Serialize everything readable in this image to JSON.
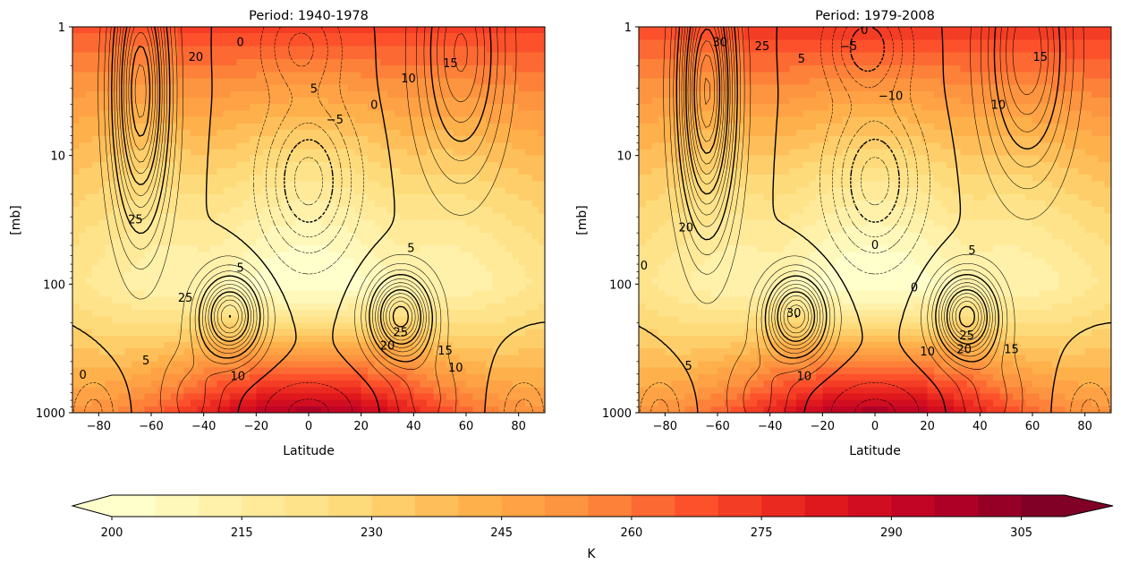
{
  "chart_data": [
    {
      "type": "heatmap",
      "subtype": "filled contour with line contour overlay",
      "title": "Period: 1940-1978",
      "xlabel": "Latitude",
      "ylabel": "[mb]",
      "xlim": [
        -90,
        90
      ],
      "ylim": [
        1000,
        1
      ],
      "yscale": "log",
      "xticks": [
        "−80",
        "−60",
        "−40",
        "−20",
        "0",
        "20",
        "40",
        "60",
        "80"
      ],
      "xtick_values": [
        -80,
        -60,
        -40,
        -20,
        0,
        20,
        40,
        60,
        80
      ],
      "yticks": [
        "1",
        "10",
        "100",
        "1000"
      ],
      "ytick_values": [
        1,
        10,
        100,
        1000
      ],
      "grid": false,
      "contour_labels": [
        {
          "text": "0",
          "lat": -26,
          "p": 1.3
        },
        {
          "text": "20",
          "lat": -43,
          "p": 1.7
        },
        {
          "text": "5",
          "lat": 2,
          "p": 3
        },
        {
          "text": "10",
          "lat": 38,
          "p": 2.5
        },
        {
          "text": "15",
          "lat": 54,
          "p": 1.9
        },
        {
          "text": "0",
          "lat": 25,
          "p": 4
        },
        {
          "text": "−5",
          "lat": 10,
          "p": 5.2
        },
        {
          "text": "25",
          "lat": -66,
          "p": 31
        },
        {
          "text": "5",
          "lat": -26,
          "p": 74
        },
        {
          "text": "5",
          "lat": 39,
          "p": 52
        },
        {
          "text": "25",
          "lat": -47,
          "p": 126
        },
        {
          "text": "25",
          "lat": 35,
          "p": 234
        },
        {
          "text": "20",
          "lat": 30,
          "p": 297
        },
        {
          "text": "15",
          "lat": 52,
          "p": 326
        },
        {
          "text": "10",
          "lat": 56,
          "p": 440
        },
        {
          "text": "5",
          "lat": -62,
          "p": 388
        },
        {
          "text": "10",
          "lat": -27,
          "p": 516
        },
        {
          "text": "0",
          "lat": -86,
          "p": 500
        }
      ]
    },
    {
      "type": "heatmap",
      "subtype": "filled contour with line contour overlay",
      "title": "Period: 1979-2008",
      "xlabel": "Latitude",
      "ylabel": "[mb]",
      "xlim": [
        -90,
        90
      ],
      "ylim": [
        1000,
        1
      ],
      "yscale": "log",
      "xticks": [
        "−80",
        "−60",
        "−40",
        "−20",
        "0",
        "20",
        "40",
        "60",
        "80"
      ],
      "xtick_values": [
        -80,
        -60,
        -40,
        -20,
        0,
        20,
        40,
        60,
        80
      ],
      "yticks": [
        "1",
        "10",
        "100",
        "1000"
      ],
      "ytick_values": [
        1,
        10,
        100,
        1000
      ],
      "grid": false,
      "contour_labels": [
        {
          "text": "30",
          "lat": -59,
          "p": 1.3
        },
        {
          "text": "25",
          "lat": -43,
          "p": 1.4
        },
        {
          "text": "5",
          "lat": -28,
          "p": 1.75
        },
        {
          "text": "−5",
          "lat": -10,
          "p": 1.4
        },
        {
          "text": "0",
          "lat": -4,
          "p": 1.05
        },
        {
          "text": "15",
          "lat": 63,
          "p": 1.7
        },
        {
          "text": "−10",
          "lat": 6,
          "p": 3.4
        },
        {
          "text": "10",
          "lat": 47,
          "p": 4
        },
        {
          "text": "20",
          "lat": -72,
          "p": 36
        },
        {
          "text": "0",
          "lat": 0,
          "p": 49
        },
        {
          "text": "5",
          "lat": 37,
          "p": 54
        },
        {
          "text": "0",
          "lat": 15,
          "p": 105
        },
        {
          "text": "0",
          "lat": -88,
          "p": 71
        },
        {
          "text": "30",
          "lat": -31,
          "p": 166
        },
        {
          "text": "25",
          "lat": 35,
          "p": 247
        },
        {
          "text": "20",
          "lat": 34,
          "p": 318
        },
        {
          "text": "15",
          "lat": 52,
          "p": 318
        },
        {
          "text": "10",
          "lat": 20,
          "p": 330
        },
        {
          "text": "5",
          "lat": -71,
          "p": 427
        },
        {
          "text": "10",
          "lat": -27,
          "p": 515
        }
      ]
    }
  ],
  "colorbar": {
    "label": "K",
    "colormap": "YlOrRd",
    "min": 200,
    "max": 310,
    "step": 5,
    "extend": "both",
    "ticks": [
      "200",
      "215",
      "230",
      "245",
      "260",
      "275",
      "290",
      "305"
    ],
    "tick_values": [
      200,
      215,
      230,
      245,
      260,
      275,
      290,
      305
    ],
    "colors": [
      "#ffffcc",
      "#ffeda0",
      "#fed976",
      "#feb24c",
      "#fd8d3c",
      "#fc4e2a",
      "#e31a1c",
      "#bd0026",
      "#800026"
    ]
  }
}
